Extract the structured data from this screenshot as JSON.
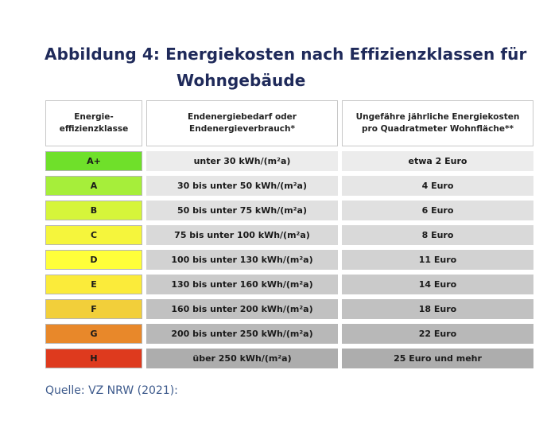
{
  "title": {
    "line1": "Abbildung 4: Energiekosten nach Effizienzklassen für",
    "line2": "Wohngebäude"
  },
  "table": {
    "headers": [
      "Energie-\neffizienzklasse",
      "Endenergiebedarf oder\nEndenergieverbrauch*",
      "Ungefähre jährliche Energiekosten\npro Quadratmeter Wohnfläche**"
    ],
    "rows": [
      {
        "klasse": "A+",
        "bedarf": "unter 30 kWh/(m²a)",
        "kosten": "etwa 2 Euro",
        "color": "#6fe02a",
        "grey": "#ececec"
      },
      {
        "klasse": "A",
        "bedarf": "30 bis unter 50 kWh/(m²a)",
        "kosten": "4 Euro",
        "color": "#a6ee3a",
        "grey": "#e6e6e6"
      },
      {
        "klasse": "B",
        "bedarf": "50 bis unter 75 kWh/(m²a)",
        "kosten": "6 Euro",
        "color": "#d6f53a",
        "grey": "#e0e0e0"
      },
      {
        "klasse": "C",
        "bedarf": "75 bis unter 100 kWh/(m²a)",
        "kosten": "8 Euro",
        "color": "#f5f53c",
        "grey": "#d9d9d9"
      },
      {
        "klasse": "D",
        "bedarf": "100 bis unter 130 kWh/(m²a)",
        "kosten": "11 Euro",
        "color": "#ffff3a",
        "grey": "#d2d2d2"
      },
      {
        "klasse": "E",
        "bedarf": "130 bis unter 160 kWh/(m²a)",
        "kosten": "14 Euro",
        "color": "#fbeb3a",
        "grey": "#cacaca"
      },
      {
        "klasse": "F",
        "bedarf": "160 bis unter 200 kWh/(m²a)",
        "kosten": "18 Euro",
        "color": "#f2cf3a",
        "grey": "#c1c1c1"
      },
      {
        "klasse": "G",
        "bedarf": "200 bis unter 250 kWh/(m²a)",
        "kosten": "22 Euro",
        "color": "#e8882a",
        "grey": "#b8b8b8"
      },
      {
        "klasse": "H",
        "bedarf": "über 250 kWh/(m²a)",
        "kosten": "25 Euro und mehr",
        "color": "#de3a1e",
        "grey": "#adadad"
      }
    ]
  },
  "source": "Quelle: VZ NRW (2021):"
}
